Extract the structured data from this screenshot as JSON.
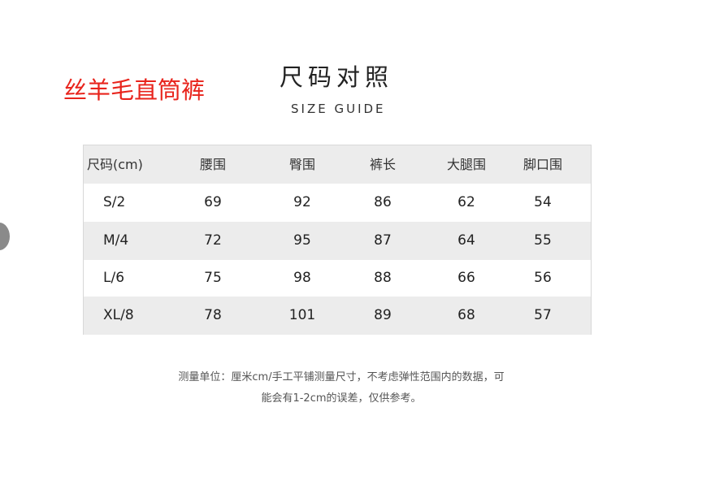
{
  "product_name": "丝羊毛直筒裤",
  "title": "尺码对照",
  "subtitle": "SIZE GUIDE",
  "table": {
    "headers": [
      "尺码(cm)",
      "腰围",
      "臀围",
      "裤长",
      "大腿围",
      "脚口围"
    ],
    "rows": [
      [
        "S/2",
        "69",
        "92",
        "86",
        "62",
        "54"
      ],
      [
        "M/4",
        "72",
        "95",
        "87",
        "64",
        "55"
      ],
      [
        "L/6",
        "75",
        "98",
        "88",
        "66",
        "56"
      ],
      [
        "XL/8",
        "78",
        "101",
        "89",
        "68",
        "57"
      ]
    ]
  },
  "note": [
    "测量单位：厘米cm/手工平铺测量尺寸，不考虑弹性范围内的数据，可",
    "能会有1-2cm的误差，仅供参考。"
  ],
  "colors": {
    "product_name": "#e8241c",
    "row_stripe": "#ececec"
  }
}
